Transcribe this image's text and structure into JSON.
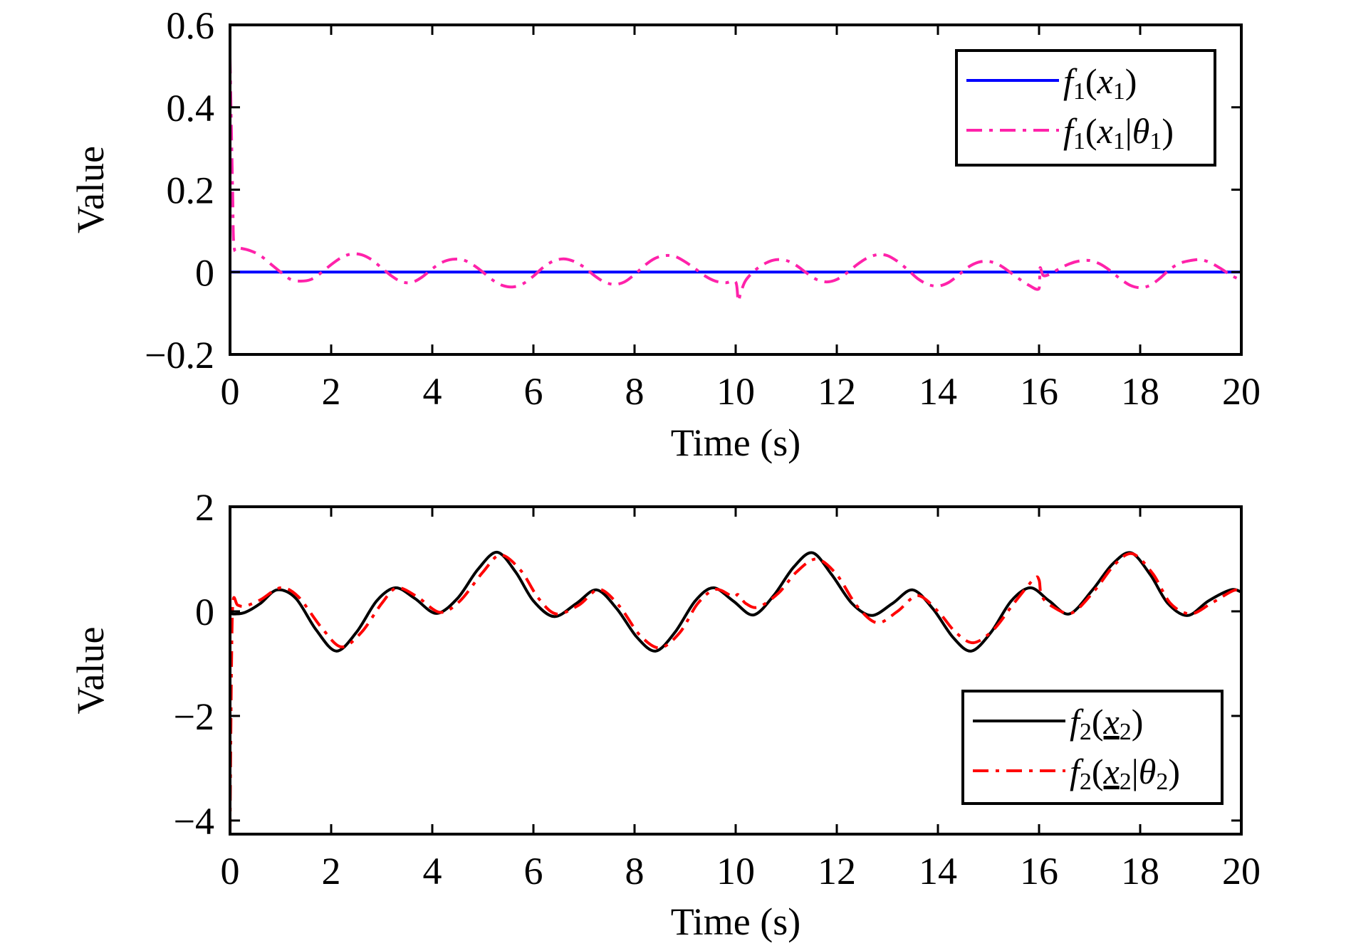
{
  "chart_data": [
    {
      "type": "line",
      "title": "",
      "xlabel": "Time (s)",
      "ylabel": "Value",
      "xlim": [
        0,
        20
      ],
      "ylim": [
        -0.2,
        0.6
      ],
      "xticks": [
        "0",
        "2",
        "4",
        "6",
        "8",
        "10",
        "12",
        "14",
        "16",
        "18",
        "20"
      ],
      "yticks": [
        "0.6",
        "0.4",
        "0.2",
        "0",
        "−0.2"
      ],
      "ytick_values": [
        0.6,
        0.4,
        0.2,
        0,
        -0.2
      ],
      "xtick_values": [
        0,
        2,
        4,
        6,
        8,
        10,
        12,
        14,
        16,
        18,
        20
      ],
      "grid": false,
      "legend_position": "top-right",
      "series": [
        {
          "name": "f1(x1)",
          "legend": {
            "f": "f",
            "sub1": "1",
            "open": "(",
            "x": "x",
            "sub2": "1",
            "close": ")"
          },
          "color": "#0000ff",
          "style": "solid",
          "x": [
            0,
            20
          ],
          "y": [
            0,
            0
          ]
        },
        {
          "name": "f1(x1|θ1)",
          "legend": {
            "f": "f",
            "sub1": "1",
            "open": "(",
            "x": "x",
            "sub2": "1",
            "bar": "|",
            "theta": "θ",
            "sub3": "1",
            "close": ")"
          },
          "color": "#ff22aa",
          "style": "dashdot",
          "x": [
            0,
            0.05,
            0.08,
            0.2,
            0.4,
            0.6,
            0.8,
            1.0,
            1.2,
            1.4,
            1.6,
            1.8,
            2.0,
            2.2,
            2.4,
            2.6,
            2.8,
            3.0,
            3.2,
            3.4,
            3.6,
            3.8,
            4.0,
            4.2,
            4.4,
            4.6,
            4.8,
            5.0,
            5.2,
            5.4,
            5.6,
            5.8,
            6.0,
            6.2,
            6.4,
            6.6,
            6.8,
            7.0,
            7.2,
            7.4,
            7.6,
            7.8,
            8.0,
            8.2,
            8.4,
            8.6,
            8.8,
            9.0,
            9.2,
            9.4,
            9.6,
            9.8,
            10.0,
            10.05,
            10.1,
            10.2,
            10.4,
            10.6,
            10.8,
            11.0,
            11.2,
            11.4,
            11.6,
            11.8,
            12.0,
            12.2,
            12.4,
            12.6,
            12.8,
            13.0,
            13.2,
            13.4,
            13.6,
            13.8,
            14.0,
            14.2,
            14.4,
            14.6,
            14.8,
            15.0,
            15.2,
            15.4,
            15.6,
            15.8,
            16.0,
            16.02,
            16.08,
            16.2,
            16.4,
            16.6,
            16.8,
            17.0,
            17.2,
            17.4,
            17.6,
            17.8,
            18.0,
            18.2,
            18.4,
            18.6,
            18.8,
            19.0,
            19.2,
            19.4,
            19.6,
            19.8,
            20.0
          ],
          "y": [
            0.52,
            0.2,
            0.06,
            0.058,
            0.052,
            0.04,
            0.02,
            0.0,
            -0.018,
            -0.022,
            -0.018,
            -0.002,
            0.018,
            0.035,
            0.044,
            0.042,
            0.03,
            0.01,
            -0.01,
            -0.024,
            -0.025,
            -0.012,
            0.008,
            0.024,
            0.031,
            0.03,
            0.018,
            0.0,
            -0.02,
            -0.033,
            -0.036,
            -0.028,
            -0.01,
            0.012,
            0.027,
            0.032,
            0.026,
            0.012,
            -0.008,
            -0.024,
            -0.03,
            -0.024,
            -0.006,
            0.016,
            0.033,
            0.04,
            0.038,
            0.025,
            0.008,
            -0.01,
            -0.022,
            -0.026,
            -0.024,
            -0.07,
            -0.05,
            -0.02,
            0.006,
            0.022,
            0.03,
            0.028,
            0.016,
            -0.002,
            -0.018,
            -0.024,
            -0.018,
            -0.002,
            0.018,
            0.034,
            0.042,
            0.04,
            0.026,
            0.006,
            -0.016,
            -0.03,
            -0.034,
            -0.026,
            -0.008,
            0.012,
            0.024,
            0.026,
            0.018,
            0.002,
            -0.016,
            -0.032,
            -0.04,
            0.01,
            -0.008,
            -0.006,
            0.008,
            0.02,
            0.027,
            0.028,
            0.02,
            0.004,
            -0.016,
            -0.032,
            -0.038,
            -0.032,
            -0.014,
            0.008,
            0.022,
            0.028,
            0.03,
            0.022,
            0.008,
            -0.008,
            -0.02
          ]
        }
      ]
    },
    {
      "type": "line",
      "title": "",
      "xlabel": "Time (s)",
      "ylabel": "Value",
      "xlim": [
        0,
        20
      ],
      "ylim": [
        -4.26,
        2
      ],
      "xticks": [
        "0",
        "2",
        "4",
        "6",
        "8",
        "10",
        "12",
        "14",
        "16",
        "18",
        "20"
      ],
      "yticks": [
        "2",
        "0",
        "−2",
        "−4"
      ],
      "ytick_values": [
        2,
        0,
        -2,
        -4
      ],
      "xtick_values": [
        0,
        2,
        4,
        6,
        8,
        10,
        12,
        14,
        16,
        18,
        20
      ],
      "grid": false,
      "legend_position": "bottom-right",
      "series": [
        {
          "name": "f2(x2)",
          "legend": {
            "f": "f",
            "sub1": "2",
            "open": "(",
            "x": "x",
            "sub2": "2",
            "close": ")"
          },
          "color": "#000000",
          "style": "solid",
          "x": [
            0,
            0.1,
            0.3,
            0.6,
            0.93,
            1.3,
            1.7,
            2.1,
            2.5,
            2.9,
            3.27,
            3.65,
            4.08,
            4.5,
            4.9,
            5.28,
            5.65,
            6.0,
            6.41,
            6.85,
            7.25,
            7.65,
            8.05,
            8.42,
            8.8,
            9.2,
            9.56,
            9.95,
            10.35,
            10.75,
            11.15,
            11.52,
            11.9,
            12.3,
            12.69,
            13.1,
            13.5,
            13.9,
            14.3,
            14.66,
            15.05,
            15.45,
            15.83,
            16.2,
            16.6,
            17.05,
            17.45,
            17.82,
            18.2,
            18.55,
            18.94,
            19.35,
            19.79,
            20.0
          ],
          "y": [
            -0.04,
            -0.05,
            -0.02,
            0.15,
            0.41,
            0.25,
            -0.35,
            -0.76,
            -0.4,
            0.2,
            0.45,
            0.25,
            -0.04,
            0.25,
            0.8,
            1.13,
            0.75,
            0.2,
            -0.1,
            0.15,
            0.41,
            0.05,
            -0.5,
            -0.76,
            -0.4,
            0.2,
            0.45,
            0.2,
            -0.07,
            0.3,
            0.85,
            1.12,
            0.7,
            0.15,
            -0.08,
            0.15,
            0.41,
            0.05,
            -0.5,
            -0.76,
            -0.4,
            0.2,
            0.45,
            0.2,
            -0.05,
            0.4,
            0.9,
            1.12,
            0.7,
            0.15,
            -0.08,
            0.2,
            0.41,
            0.37
          ]
        },
        {
          "name": "f2(x2|θ2)",
          "legend": {
            "f": "f",
            "sub1": "2",
            "open": "(",
            "x": "x",
            "sub2": "2",
            "bar": "|",
            "theta": "θ",
            "sub3": "2",
            "close": ")"
          },
          "color": "#ff0000",
          "style": "dashdot",
          "x": [
            0,
            0.03,
            0.06,
            0.15,
            0.3,
            0.6,
            1.0,
            1.35,
            1.8,
            2.2,
            2.6,
            3.0,
            3.3,
            3.7,
            4.15,
            4.55,
            5.0,
            5.35,
            5.75,
            6.1,
            6.45,
            6.9,
            7.3,
            7.7,
            8.1,
            8.5,
            8.9,
            9.25,
            9.6,
            9.95,
            10.05,
            10.2,
            10.45,
            10.85,
            11.2,
            11.6,
            12.0,
            12.4,
            12.8,
            13.2,
            13.6,
            14.0,
            14.35,
            14.7,
            15.1,
            15.5,
            15.9,
            16.0,
            16.05,
            16.25,
            16.65,
            17.1,
            17.5,
            17.85,
            18.25,
            18.6,
            19.0,
            19.4,
            19.85,
            20.0
          ],
          "y": [
            -4.26,
            -1.0,
            0.2,
            0.12,
            0.1,
            0.22,
            0.45,
            0.28,
            -0.3,
            -0.68,
            -0.4,
            0.15,
            0.45,
            0.28,
            -0.02,
            0.2,
            0.75,
            1.08,
            0.78,
            0.25,
            -0.05,
            0.12,
            0.42,
            0.1,
            -0.45,
            -0.7,
            -0.4,
            0.15,
            0.42,
            0.28,
            0.32,
            0.15,
            0.08,
            0.35,
            0.75,
            1.0,
            0.7,
            0.1,
            -0.22,
            0.0,
            0.3,
            0.0,
            -0.4,
            -0.6,
            -0.35,
            0.15,
            0.62,
            0.6,
            0.3,
            0.1,
            -0.03,
            0.4,
            0.9,
            1.1,
            0.72,
            0.15,
            -0.05,
            0.15,
            0.4,
            0.35
          ]
        }
      ]
    }
  ]
}
